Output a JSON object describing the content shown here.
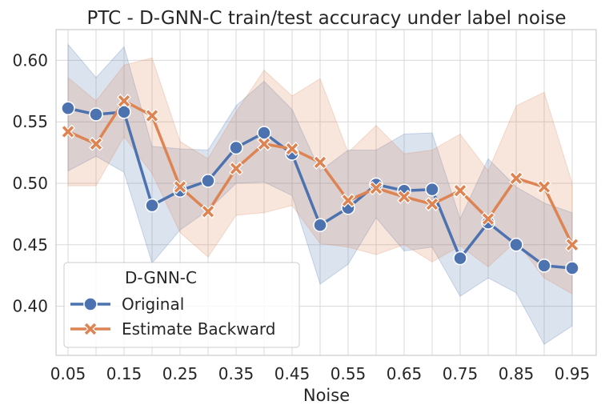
{
  "chart_data": {
    "type": "line",
    "title": "PTC - D-GNN-C train/test accuracy under label noise",
    "xlabel": "Noise",
    "ylabel": "",
    "xlim": [
      0.05,
      0.95
    ],
    "ylim": [
      0.36,
      0.625
    ],
    "x": [
      0.05,
      0.1,
      0.15,
      0.2,
      0.25,
      0.3,
      0.35,
      0.4,
      0.45,
      0.5,
      0.55,
      0.6,
      0.65,
      0.7,
      0.75,
      0.8,
      0.85,
      0.9,
      0.95
    ],
    "xticks": [
      0.05,
      0.15,
      0.25,
      0.35,
      0.45,
      0.55,
      0.65,
      0.75,
      0.85,
      0.95
    ],
    "xtick_labels": [
      "0.05",
      "0.15",
      "0.25",
      "0.35",
      "0.45",
      "0.55",
      "0.65",
      "0.75",
      "0.85",
      "0.95"
    ],
    "yticks": [
      0.4,
      0.45,
      0.5,
      0.55,
      0.6
    ],
    "ytick_labels": [
      "0.40",
      "0.45",
      "0.50",
      "0.55",
      "0.60"
    ],
    "grid": true,
    "legend": {
      "title": "D-GNN-C",
      "placement": "lower-left"
    },
    "series": [
      {
        "name": "Original",
        "color": "#4c72b0",
        "marker": "circle",
        "values": [
          0.561,
          0.556,
          0.558,
          0.482,
          0.494,
          0.502,
          0.529,
          0.541,
          0.524,
          0.466,
          0.48,
          0.499,
          0.494,
          0.495,
          0.439,
          0.468,
          0.45,
          0.433,
          0.431
        ],
        "ci_upper": [
          0.613,
          0.586,
          0.611,
          0.53,
          0.528,
          0.527,
          0.563,
          0.583,
          0.56,
          0.51,
          0.527,
          0.527,
          0.54,
          0.541,
          0.471,
          0.52,
          0.497,
          0.484,
          0.476
        ],
        "ci_lower": [
          0.51,
          0.522,
          0.509,
          0.435,
          0.462,
          0.478,
          0.5,
          0.501,
          0.49,
          0.418,
          0.434,
          0.472,
          0.445,
          0.448,
          0.408,
          0.423,
          0.411,
          0.369,
          0.384
        ]
      },
      {
        "name": "Estimate Backward",
        "color": "#dd8452",
        "marker": "x",
        "values": [
          0.542,
          0.532,
          0.567,
          0.555,
          0.497,
          0.477,
          0.512,
          0.532,
          0.528,
          0.517,
          0.486,
          0.496,
          0.489,
          0.483,
          0.494,
          0.471,
          0.504,
          0.497,
          0.45
        ],
        "ci_upper": [
          0.586,
          0.567,
          0.596,
          0.602,
          0.534,
          0.52,
          0.558,
          0.592,
          0.571,
          0.585,
          0.525,
          0.547,
          0.524,
          0.527,
          0.54,
          0.51,
          0.563,
          0.574,
          0.5
        ],
        "ci_lower": [
          0.498,
          0.498,
          0.538,
          0.508,
          0.46,
          0.44,
          0.474,
          0.476,
          0.482,
          0.451,
          0.448,
          0.442,
          0.45,
          0.436,
          0.449,
          0.432,
          0.453,
          0.423,
          0.41
        ]
      }
    ]
  }
}
